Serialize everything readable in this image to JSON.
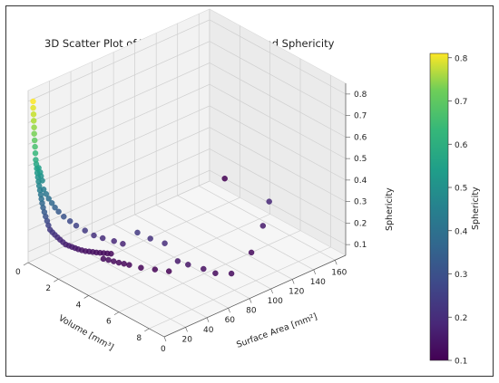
{
  "chart_data": {
    "type": "scatter",
    "title": "3D Scatter Plot of Volume, Surface Area, and Sphericity",
    "xlabel": "Volume [mm³]",
    "ylabel": "Surface Area [mm²]",
    "zlabel": "Sphericity",
    "colorbar_label": "Sphericity",
    "colormap": "viridis",
    "xlim": [
      0,
      9
    ],
    "ylim": [
      0,
      170
    ],
    "zlim": [
      0.05,
      0.85
    ],
    "x_ticks": [
      "0",
      "2",
      "4",
      "6",
      "8"
    ],
    "y_ticks": [
      "0",
      "20",
      "40",
      "60",
      "80",
      "100",
      "120",
      "140",
      "160"
    ],
    "z_ticks": [
      "0.1",
      "0.2",
      "0.3",
      "0.4",
      "0.5",
      "0.6",
      "0.7",
      "0.8"
    ],
    "colorbar_ticks": [
      "0.1",
      "0.2",
      "0.3",
      "0.4",
      "0.5",
      "0.6",
      "0.7",
      "0.8"
    ],
    "colorbar_range": [
      0.1,
      0.81
    ],
    "grid": true,
    "points": [
      {
        "x": 0.3,
        "y": 0.4,
        "z": 0.81
      },
      {
        "x": 0.3,
        "y": 0.5,
        "z": 0.78
      },
      {
        "x": 0.32,
        "y": 0.6,
        "z": 0.75
      },
      {
        "x": 0.32,
        "y": 0.7,
        "z": 0.72
      },
      {
        "x": 0.34,
        "y": 0.8,
        "z": 0.69
      },
      {
        "x": 0.34,
        "y": 0.9,
        "z": 0.66
      },
      {
        "x": 0.36,
        "y": 1.0,
        "z": 0.63
      },
      {
        "x": 0.37,
        "y": 1.2,
        "z": 0.6
      },
      {
        "x": 0.38,
        "y": 1.4,
        "z": 0.57
      },
      {
        "x": 0.4,
        "y": 1.5,
        "z": 0.54
      },
      {
        "x": 0.42,
        "y": 1.7,
        "z": 0.52
      },
      {
        "x": 0.44,
        "y": 1.9,
        "z": 0.5
      },
      {
        "x": 0.46,
        "y": 2.1,
        "z": 0.48
      },
      {
        "x": 0.48,
        "y": 2.4,
        "z": 0.46
      },
      {
        "x": 0.5,
        "y": 2.7,
        "z": 0.44
      },
      {
        "x": 0.52,
        "y": 3.0,
        "z": 0.42
      },
      {
        "x": 0.55,
        "y": 3.3,
        "z": 0.4
      },
      {
        "x": 0.58,
        "y": 3.7,
        "z": 0.38
      },
      {
        "x": 0.6,
        "y": 4.0,
        "z": 0.36
      },
      {
        "x": 0.62,
        "y": 4.4,
        "z": 0.34
      },
      {
        "x": 0.65,
        "y": 4.8,
        "z": 0.32
      },
      {
        "x": 0.7,
        "y": 5.3,
        "z": 0.3
      },
      {
        "x": 0.75,
        "y": 5.8,
        "z": 0.28
      },
      {
        "x": 0.8,
        "y": 6.4,
        "z": 0.26
      },
      {
        "x": 0.85,
        "y": 7.0,
        "z": 0.24
      },
      {
        "x": 0.9,
        "y": 7.8,
        "z": 0.22
      },
      {
        "x": 1.0,
        "y": 8.6,
        "z": 0.21
      },
      {
        "x": 1.1,
        "y": 9.5,
        "z": 0.2
      },
      {
        "x": 1.2,
        "y": 10.5,
        "z": 0.19
      },
      {
        "x": 1.3,
        "y": 11.6,
        "z": 0.18
      },
      {
        "x": 1.4,
        "y": 12.8,
        "z": 0.17
      },
      {
        "x": 1.5,
        "y": 14.0,
        "z": 0.16
      },
      {
        "x": 1.6,
        "y": 15.5,
        "z": 0.155
      },
      {
        "x": 1.7,
        "y": 17.0,
        "z": 0.15
      },
      {
        "x": 1.8,
        "y": 18.5,
        "z": 0.145
      },
      {
        "x": 1.9,
        "y": 20.0,
        "z": 0.14
      },
      {
        "x": 2.0,
        "y": 22.0,
        "z": 0.135
      },
      {
        "x": 2.1,
        "y": 24.0,
        "z": 0.13
      },
      {
        "x": 2.2,
        "y": 26.0,
        "z": 0.128
      },
      {
        "x": 2.3,
        "y": 28.0,
        "z": 0.125
      },
      {
        "x": 2.4,
        "y": 30.0,
        "z": 0.122
      },
      {
        "x": 2.5,
        "y": 32.0,
        "z": 0.12
      },
      {
        "x": 2.6,
        "y": 34.0,
        "z": 0.118
      },
      {
        "x": 2.7,
        "y": 36.0,
        "z": 0.116
      },
      {
        "x": 2.8,
        "y": 38.0,
        "z": 0.114
      },
      {
        "x": 0.6,
        "y": 6.0,
        "z": 0.4
      },
      {
        "x": 0.7,
        "y": 7.0,
        "z": 0.38
      },
      {
        "x": 0.8,
        "y": 8.0,
        "z": 0.36
      },
      {
        "x": 0.9,
        "y": 9.5,
        "z": 0.34
      },
      {
        "x": 1.0,
        "y": 11.0,
        "z": 0.32
      },
      {
        "x": 1.1,
        "y": 13.0,
        "z": 0.3
      },
      {
        "x": 1.3,
        "y": 15.0,
        "z": 0.28
      },
      {
        "x": 1.5,
        "y": 18.0,
        "z": 0.26
      },
      {
        "x": 1.7,
        "y": 21.0,
        "z": 0.24
      },
      {
        "x": 2.0,
        "y": 25.0,
        "z": 0.22
      },
      {
        "x": 2.3,
        "y": 29.0,
        "z": 0.2
      },
      {
        "x": 2.6,
        "y": 33.0,
        "z": 0.19
      },
      {
        "x": 3.0,
        "y": 38.0,
        "z": 0.18
      },
      {
        "x": 3.3,
        "y": 42.0,
        "z": 0.17
      },
      {
        "x": 0.5,
        "y": 5.0,
        "z": 0.46
      },
      {
        "x": 0.55,
        "y": 5.5,
        "z": 0.44
      },
      {
        "x": 0.45,
        "y": 3.5,
        "z": 0.5
      },
      {
        "x": 0.5,
        "y": 4.2,
        "z": 0.48
      },
      {
        "x": 3.0,
        "y": 28.0,
        "z": 0.12
      },
      {
        "x": 3.2,
        "y": 30.0,
        "z": 0.118
      },
      {
        "x": 3.4,
        "y": 32.0,
        "z": 0.115
      },
      {
        "x": 3.6,
        "y": 34.0,
        "z": 0.112
      },
      {
        "x": 3.8,
        "y": 36.0,
        "z": 0.11
      },
      {
        "x": 4.0,
        "y": 38.0,
        "z": 0.108
      },
      {
        "x": 4.5,
        "y": 42.0,
        "z": 0.105
      },
      {
        "x": 5.0,
        "y": 48.0,
        "z": 0.103
      },
      {
        "x": 5.5,
        "y": 54.0,
        "z": 0.1
      },
      {
        "x": 4.2,
        "y": 55.0,
        "z": 0.2
      },
      {
        "x": 4.8,
        "y": 60.0,
        "z": 0.19
      },
      {
        "x": 3.7,
        "y": 50.0,
        "z": 0.22
      },
      {
        "x": 6.2,
        "y": 62.0,
        "z": 0.14
      },
      {
        "x": 6.8,
        "y": 68.0,
        "z": 0.13
      },
      {
        "x": 7.3,
        "y": 72.0,
        "z": 0.12
      },
      {
        "x": 5.8,
        "y": 58.0,
        "z": 0.15
      },
      {
        "x": 7.8,
        "y": 80.0,
        "z": 0.12
      },
      {
        "x": 7.0,
        "y": 110.0,
        "z": 0.12
      },
      {
        "x": 6.0,
        "y": 135.0,
        "z": 0.15
      },
      {
        "x": 5.0,
        "y": 155.0,
        "z": 0.18
      },
      {
        "x": 1.0,
        "y": 170.0,
        "z": 0.1
      }
    ]
  }
}
